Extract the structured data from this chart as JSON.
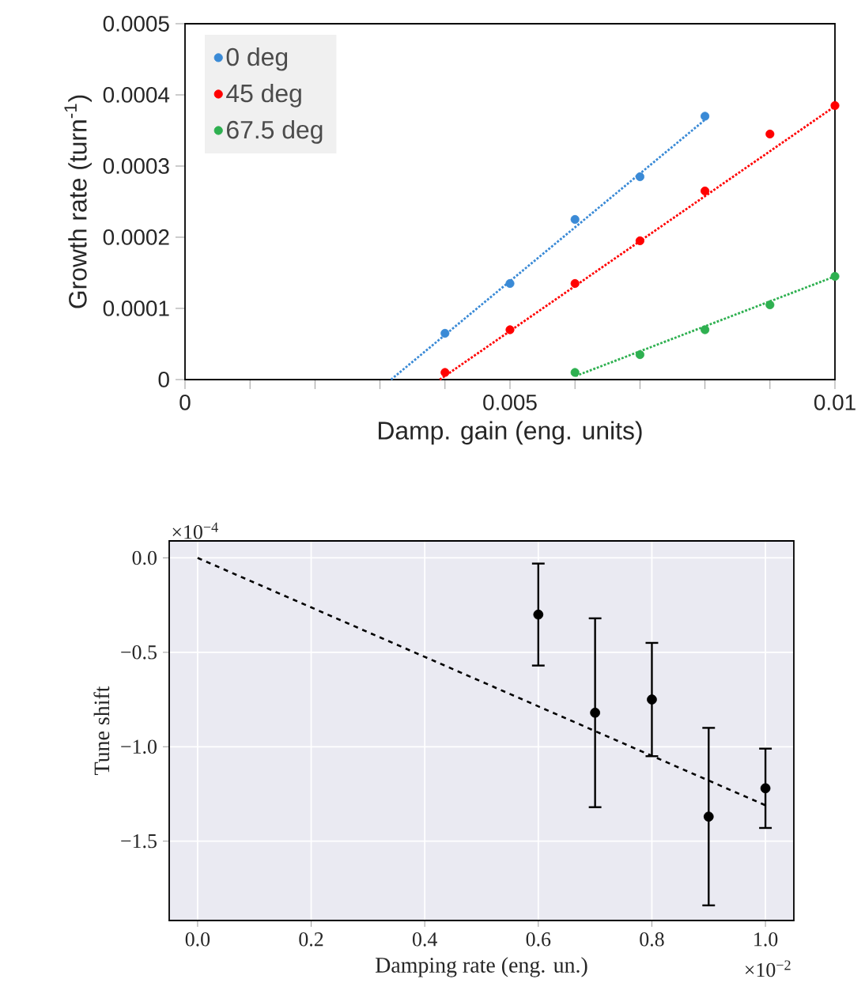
{
  "chart_data": [
    {
      "type": "scatter",
      "xlabel": "Damp. gain (eng. units)",
      "ylabel": "Growth rate (turn$^{-1}$)",
      "xlim": [
        0,
        0.01
      ],
      "ylim": [
        0,
        0.0005
      ],
      "xticks": [
        0,
        {
          "value": 0.001,
          "label": null
        },
        {
          "value": 0.002,
          "label": null
        },
        {
          "value": 0.003,
          "label": null
        },
        {
          "value": 0.004,
          "label": null
        },
        0.005,
        {
          "value": 0.006,
          "label": null
        },
        {
          "value": 0.007,
          "label": null
        },
        {
          "value": 0.008,
          "label": null
        },
        {
          "value": 0.009,
          "label": null
        },
        0.01
      ],
      "yticks": [
        0,
        0.0001,
        0.0002,
        0.0003,
        0.0004,
        0.0005
      ],
      "legend": "top left",
      "series": [
        {
          "name": "0 deg",
          "marker": "circle",
          "color": "#3a8ad6",
          "x": [
            0.004,
            0.005,
            0.006,
            0.007,
            0.008
          ],
          "values": [
            6.5e-05,
            0.000135,
            0.000225,
            0.000285,
            0.00037
          ]
        },
        {
          "name": "45 deg",
          "marker": "circle",
          "color": "#ff0000",
          "x": [
            0.004,
            0.005,
            0.006,
            0.007,
            0.008,
            0.009,
            0.01
          ],
          "values": [
            1e-05,
            7e-05,
            0.000135,
            0.000195,
            0.000265,
            0.000345,
            0.000385
          ]
        },
        {
          "name": "67.5 deg",
          "marker": "circle",
          "color": "#2eb050",
          "x": [
            0.006,
            0.007,
            0.008,
            0.009,
            0.01
          ],
          "values": [
            1e-05,
            3.5e-05,
            7e-05,
            0.000105,
            0.000145
          ]
        },
        {
          "type": "line",
          "marker": "none",
          "line_style": "dotted",
          "color": "#3a8ad6",
          "x": [
            0.00317,
            0.008
          ],
          "values": [
            0,
            0.000365
          ]
        },
        {
          "type": "line",
          "marker": "none",
          "line_style": "dotted",
          "color": "#ff0000",
          "x": [
            0.00392,
            0.01
          ],
          "values": [
            0,
            0.000384
          ]
        },
        {
          "type": "line",
          "marker": "none",
          "line_style": "dotted",
          "color": "#2eb050",
          "x": [
            0.00601,
            0.01
          ],
          "values": [
            5e-06,
            0.000145
          ]
        }
      ]
    },
    {
      "type": "scatter",
      "xlabel": "Damping rate (eng. un.)",
      "ylabel": "Tune shift",
      "annotations": [
        "×10$^{−4}$",
        "×10$^{−2}$"
      ],
      "xlim": [
        -0.05,
        1.05
      ],
      "ylim": [
        -1.92,
        0.09
      ],
      "xticks": [
        {
          "value": 0,
          "label": "0.0"
        },
        {
          "value": 0.2,
          "label": "0.2"
        },
        {
          "value": 0.4,
          "label": "0.4"
        },
        {
          "value": 0.6,
          "label": "0.6"
        },
        {
          "value": 0.8,
          "label": "0.8"
        },
        {
          "value": 1,
          "label": "1.0"
        }
      ],
      "yticks": [
        {
          "value": 0,
          "label": "0.0"
        },
        {
          "value": -0.5,
          "label": "−0.5"
        },
        {
          "value": -1,
          "label": "−1.0"
        },
        {
          "value": -1.5,
          "label": "−1.5"
        }
      ],
      "grid": true,
      "series": [
        {
          "marker": "circle",
          "color": "#000000",
          "x": [
            0.6,
            0.7,
            0.8,
            0.9,
            1.0
          ],
          "values": [
            -0.3,
            -0.82,
            -0.75,
            -1.37,
            -1.22
          ],
          "errors": [
            0.27,
            0.5,
            0.3,
            0.47,
            0.21
          ]
        },
        {
          "type": "line",
          "marker": "none",
          "line_style": "dashed",
          "color": "#000000",
          "x": [
            0,
            1.0
          ],
          "values": [
            0,
            -1.31
          ]
        }
      ]
    }
  ]
}
